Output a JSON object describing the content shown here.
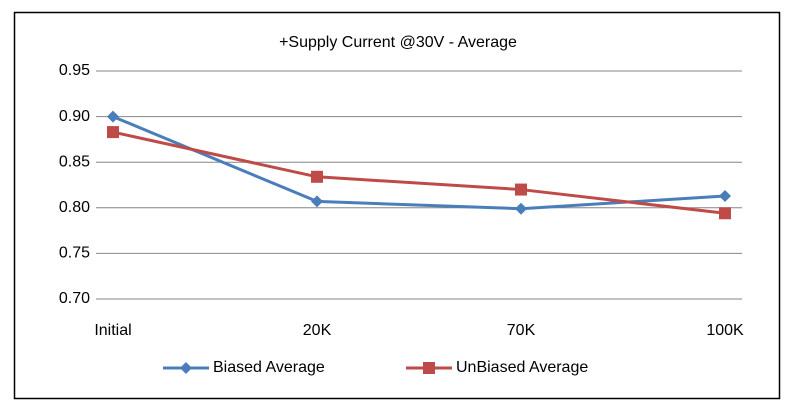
{
  "chart_data": {
    "type": "line",
    "title": "+Supply Current @30V - Average",
    "categories": [
      "Initial",
      "20K",
      "70K",
      "100K"
    ],
    "series": [
      {
        "name": "Biased Average",
        "color": "#4a7ebb",
        "marker": "diamond",
        "values": [
          0.9,
          0.807,
          0.799,
          0.813
        ]
      },
      {
        "name": "UnBiased Average",
        "color": "#be4b48",
        "marker": "square",
        "values": [
          0.883,
          0.834,
          0.82,
          0.794
        ]
      }
    ],
    "ylim": [
      0.7,
      0.95
    ],
    "yticks": [
      {
        "value": 0.7,
        "label": "0.70"
      },
      0.75,
      {
        "value": 0.8,
        "label": "0.80"
      },
      0.85,
      {
        "value": 0.9,
        "label": "0.90"
      },
      0.95
    ],
    "grid": true,
    "legend": "bottom"
  }
}
